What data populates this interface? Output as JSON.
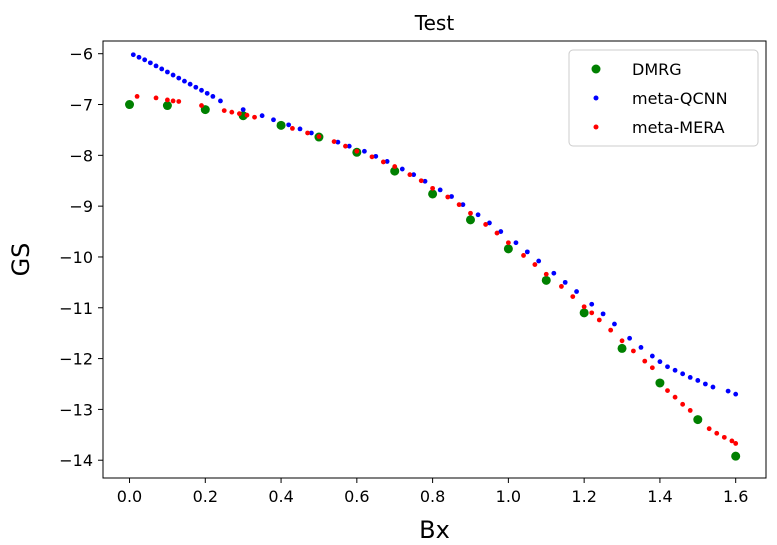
{
  "chart_data": {
    "type": "scatter",
    "title": "Test",
    "xlabel": "Bx",
    "ylabel": "GS",
    "xlim": [
      -0.07,
      1.68
    ],
    "ylim": [
      -14.35,
      -5.75
    ],
    "xticks": [
      0.0,
      0.2,
      0.4,
      0.6,
      0.8,
      1.0,
      1.2,
      1.4,
      1.6
    ],
    "xtick_labels": [
      "0.0",
      "0.2",
      "0.4",
      "0.6",
      "0.8",
      "1.0",
      "1.2",
      "1.4",
      "1.6"
    ],
    "yticks": [
      -6,
      -7,
      -8,
      -9,
      -10,
      -11,
      -12,
      -13,
      -14
    ],
    "ytick_labels": [
      "−6",
      "−7",
      "−8",
      "−9",
      "−10",
      "−11",
      "−12",
      "−13",
      "−14"
    ],
    "grid": false,
    "legend_position": "top-right",
    "series": [
      {
        "name": "DMRG",
        "color": "#008000",
        "marker": "large-circle",
        "x": [
          0.0,
          0.1,
          0.2,
          0.3,
          0.4,
          0.5,
          0.6,
          0.7,
          0.8,
          0.9,
          1.0,
          1.1,
          1.2,
          1.3,
          1.4,
          1.5,
          1.6
        ],
        "y": [
          -7.0,
          -7.02,
          -7.1,
          -7.22,
          -7.41,
          -7.64,
          -7.94,
          -8.31,
          -8.76,
          -9.27,
          -9.84,
          -10.46,
          -11.1,
          -11.8,
          -12.48,
          -13.2,
          -13.92
        ]
      },
      {
        "name": "meta-QCNN",
        "color": "#0000ff",
        "marker": "small-dot",
        "x": [
          0.01,
          0.025,
          0.04,
          0.055,
          0.07,
          0.085,
          0.1,
          0.115,
          0.13,
          0.145,
          0.16,
          0.175,
          0.19,
          0.205,
          0.22,
          0.24,
          0.3,
          0.35,
          0.38,
          0.42,
          0.45,
          0.48,
          0.55,
          0.58,
          0.62,
          0.65,
          0.68,
          0.72,
          0.75,
          0.78,
          0.82,
          0.85,
          0.88,
          0.92,
          0.95,
          0.98,
          1.02,
          1.05,
          1.08,
          1.12,
          1.15,
          1.18,
          1.22,
          1.25,
          1.28,
          1.32,
          1.35,
          1.38,
          1.4,
          1.42,
          1.44,
          1.46,
          1.48,
          1.5,
          1.52,
          1.54,
          1.58,
          1.6
        ],
        "y": [
          -6.02,
          -6.07,
          -6.12,
          -6.18,
          -6.24,
          -6.3,
          -6.36,
          -6.42,
          -6.48,
          -6.54,
          -6.6,
          -6.66,
          -6.72,
          -6.78,
          -6.84,
          -6.93,
          -7.1,
          -7.22,
          -7.3,
          -7.4,
          -7.48,
          -7.56,
          -7.74,
          -7.82,
          -7.92,
          -8.02,
          -8.12,
          -8.27,
          -8.38,
          -8.51,
          -8.68,
          -8.81,
          -8.97,
          -9.17,
          -9.33,
          -9.5,
          -9.72,
          -9.9,
          -10.08,
          -10.32,
          -10.5,
          -10.68,
          -10.93,
          -11.12,
          -11.32,
          -11.6,
          -11.78,
          -11.95,
          -12.06,
          -12.16,
          -12.23,
          -12.3,
          -12.37,
          -12.43,
          -12.5,
          -12.56,
          -12.64,
          -12.7
        ]
      },
      {
        "name": "meta-MERA",
        "color": "#ff0000",
        "marker": "small-dot",
        "x": [
          0.02,
          0.07,
          0.1,
          0.115,
          0.13,
          0.19,
          0.25,
          0.27,
          0.29,
          0.31,
          0.33,
          0.43,
          0.47,
          0.5,
          0.54,
          0.57,
          0.6,
          0.64,
          0.67,
          0.7,
          0.74,
          0.77,
          0.8,
          0.84,
          0.87,
          0.9,
          0.94,
          0.97,
          1.0,
          1.04,
          1.07,
          1.1,
          1.14,
          1.17,
          1.2,
          1.22,
          1.24,
          1.27,
          1.3,
          1.33,
          1.36,
          1.38,
          1.42,
          1.44,
          1.46,
          1.48,
          1.53,
          1.55,
          1.57,
          1.59,
          1.6
        ],
        "y": [
          -6.84,
          -6.87,
          -6.91,
          -6.93,
          -6.94,
          -7.02,
          -7.12,
          -7.15,
          -7.18,
          -7.21,
          -7.25,
          -7.47,
          -7.56,
          -7.63,
          -7.73,
          -7.82,
          -7.92,
          -8.03,
          -8.13,
          -8.22,
          -8.38,
          -8.5,
          -8.65,
          -8.82,
          -8.97,
          -9.14,
          -9.36,
          -9.53,
          -9.72,
          -9.97,
          -10.15,
          -10.34,
          -10.58,
          -10.78,
          -10.98,
          -11.1,
          -11.24,
          -11.44,
          -11.65,
          -11.85,
          -12.05,
          -12.18,
          -12.63,
          -12.76,
          -12.9,
          -13.02,
          -13.38,
          -13.47,
          -13.55,
          -13.62,
          -13.67
        ]
      }
    ]
  }
}
